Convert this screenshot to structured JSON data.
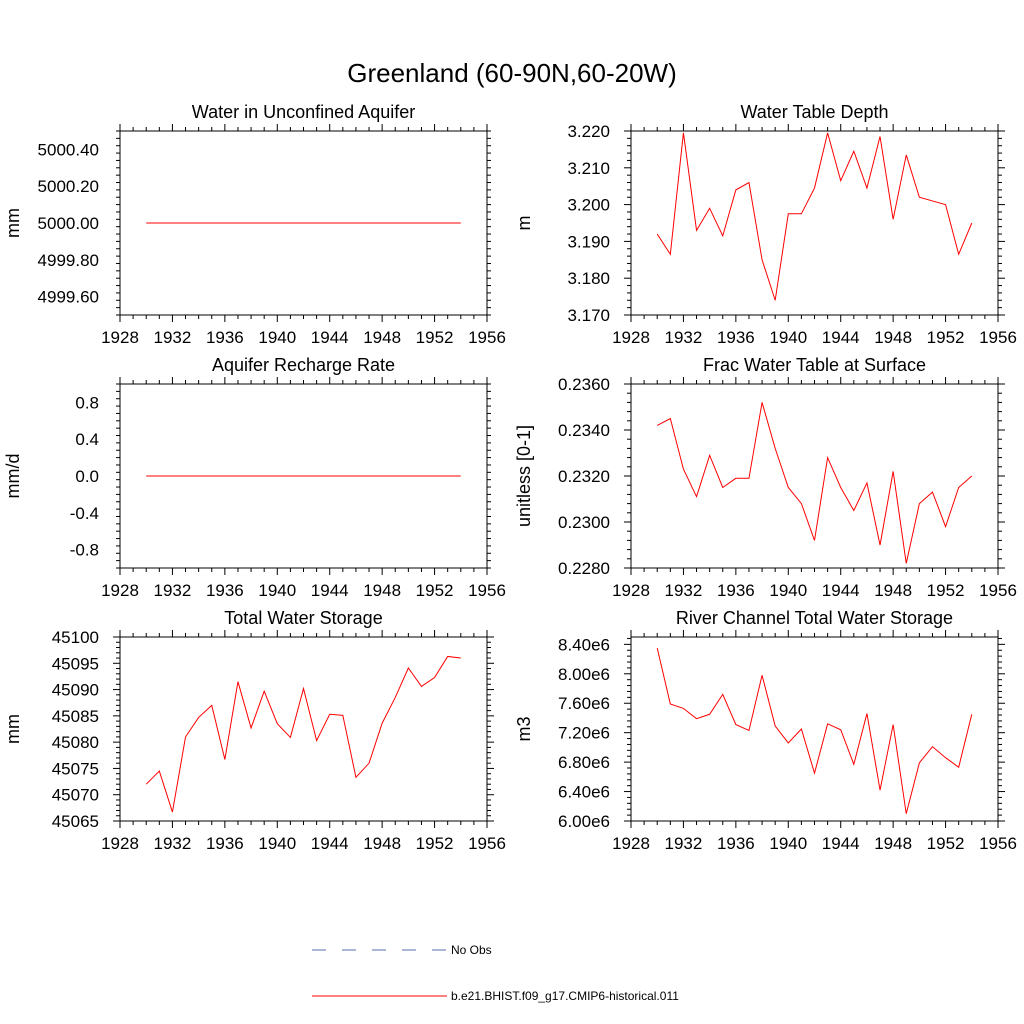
{
  "figure_title": "Greenland (60-90N,60-20W)",
  "colors": {
    "model": "#ff0000",
    "obs": "#5a6fb0",
    "axis": "#000000"
  },
  "legend": [
    {
      "label": "No Obs",
      "style": "dashed",
      "color": "#5a6fb0"
    },
    {
      "label": "b.e21.BHIST.f09_g17.CMIP6-historical.011",
      "style": "solid",
      "color": "#ff0000"
    }
  ],
  "chart_data": [
    {
      "type": "line",
      "title": "Water in Unconfined Aquifer",
      "ylabel": "mm",
      "xlim": [
        1928,
        1956
      ],
      "xticks": [
        "1928",
        "1932",
        "1936",
        "1940",
        "1944",
        "1948",
        "1952",
        "1956"
      ],
      "ylim": [
        4999.5,
        5000.5
      ],
      "yticks": [
        "4999.60",
        "4999.80",
        "5000.00",
        "5000.20",
        "5000.40"
      ],
      "x": [
        1930,
        1931,
        1932,
        1933,
        1934,
        1935,
        1936,
        1937,
        1938,
        1939,
        1940,
        1941,
        1942,
        1943,
        1944,
        1945,
        1946,
        1947,
        1948,
        1949,
        1950,
        1951,
        1952,
        1953,
        1954
      ],
      "series": [
        {
          "values": [
            5000,
            5000,
            5000,
            5000,
            5000,
            5000,
            5000,
            5000,
            5000,
            5000,
            5000,
            5000,
            5000,
            5000,
            5000,
            5000,
            5000,
            5000,
            5000,
            5000,
            5000,
            5000,
            5000,
            5000,
            5000
          ]
        }
      ]
    },
    {
      "type": "line",
      "title": "Water Table Depth",
      "ylabel": "m",
      "xlim": [
        1928,
        1956
      ],
      "xticks": [
        "1928",
        "1932",
        "1936",
        "1940",
        "1944",
        "1948",
        "1952",
        "1956"
      ],
      "ylim": [
        3.17,
        3.22
      ],
      "yticks": [
        "3.170",
        "3.180",
        "3.190",
        "3.200",
        "3.210",
        "3.220"
      ],
      "x": [
        1930,
        1931,
        1932,
        1933,
        1934,
        1935,
        1936,
        1937,
        1938,
        1939,
        1940,
        1941,
        1942,
        1943,
        1944,
        1945,
        1946,
        1947,
        1948,
        1949,
        1950,
        1951,
        1952,
        1953,
        1954
      ],
      "series": [
        {
          "values": [
            3.192,
            3.1865,
            3.2195,
            3.193,
            3.199,
            3.1915,
            3.204,
            3.206,
            3.185,
            3.174,
            3.1975,
            3.1975,
            3.2045,
            3.2195,
            3.2065,
            3.2145,
            3.2045,
            3.2185,
            3.196,
            3.2135,
            3.202,
            3.201,
            3.2,
            3.1865,
            3.195
          ]
        }
      ]
    },
    {
      "type": "line",
      "title": "Aquifer Recharge Rate",
      "ylabel": "mm/d",
      "xlim": [
        1928,
        1956
      ],
      "xticks": [
        "1928",
        "1932",
        "1936",
        "1940",
        "1944",
        "1948",
        "1952",
        "1956"
      ],
      "ylim": [
        -1.0,
        1.0
      ],
      "yticks": [
        "-0.8",
        "-0.4",
        "0.0",
        "0.4",
        "0.8"
      ],
      "x": [
        1930,
        1931,
        1932,
        1933,
        1934,
        1935,
        1936,
        1937,
        1938,
        1939,
        1940,
        1941,
        1942,
        1943,
        1944,
        1945,
        1946,
        1947,
        1948,
        1949,
        1950,
        1951,
        1952,
        1953,
        1954
      ],
      "series": [
        {
          "values": [
            0,
            0,
            0,
            0,
            0,
            0,
            0,
            0,
            0,
            0,
            0,
            0,
            0,
            0,
            0,
            0,
            0,
            0,
            0,
            0,
            0,
            0,
            0,
            0,
            0
          ]
        }
      ]
    },
    {
      "type": "line",
      "title": "Frac Water Table at Surface",
      "ylabel": "unitless [0-1]",
      "xlim": [
        1928,
        1956
      ],
      "xticks": [
        "1928",
        "1932",
        "1936",
        "1940",
        "1944",
        "1948",
        "1952",
        "1956"
      ],
      "ylim": [
        0.228,
        0.236
      ],
      "yticks": [
        "0.2280",
        "0.2300",
        "0.2320",
        "0.2340",
        "0.2360"
      ],
      "x": [
        1930,
        1931,
        1932,
        1933,
        1934,
        1935,
        1936,
        1937,
        1938,
        1939,
        1940,
        1941,
        1942,
        1943,
        1944,
        1945,
        1946,
        1947,
        1948,
        1949,
        1950,
        1951,
        1952,
        1953,
        1954
      ],
      "series": [
        {
          "values": [
            0.2342,
            0.2345,
            0.2323,
            0.2311,
            0.2329,
            0.2315,
            0.2319,
            0.2319,
            0.2352,
            0.2332,
            0.2315,
            0.2308,
            0.2292,
            0.2328,
            0.2315,
            0.2305,
            0.2317,
            0.229,
            0.2322,
            0.2282,
            0.2308,
            0.2313,
            0.2298,
            0.2315,
            0.232
          ]
        }
      ]
    },
    {
      "type": "line",
      "title": "Total Water Storage",
      "ylabel": "mm",
      "xlim": [
        1928,
        1956
      ],
      "xticks": [
        "1928",
        "1932",
        "1936",
        "1940",
        "1944",
        "1948",
        "1952",
        "1956"
      ],
      "ylim": [
        45065,
        45100
      ],
      "yticks": [
        "45065",
        "45070",
        "45075",
        "45080",
        "45085",
        "45090",
        "45095",
        "45100"
      ],
      "x": [
        1930,
        1931,
        1932,
        1933,
        1934,
        1935,
        1936,
        1937,
        1938,
        1939,
        1940,
        1941,
        1942,
        1943,
        1944,
        1945,
        1946,
        1947,
        1948,
        1949,
        1950,
        1951,
        1952,
        1953,
        1954
      ],
      "series": [
        {
          "values": [
            45072,
            45074.5,
            45066.7,
            45081,
            45084.7,
            45087,
            45076.7,
            45091.5,
            45082.7,
            45089.7,
            45083.5,
            45080.9,
            45090.2,
            45080.3,
            45085.3,
            45085.1,
            45073.3,
            45076,
            45083.6,
            45088.5,
            45094.1,
            45090.6,
            45092.3,
            45096.3,
            45096
          ]
        }
      ]
    },
    {
      "type": "line",
      "title": "River Channel Total Water Storage",
      "ylabel": "m3",
      "xlim": [
        1928,
        1956
      ],
      "xticks": [
        "1928",
        "1932",
        "1936",
        "1940",
        "1944",
        "1948",
        "1952",
        "1956"
      ],
      "ylim": [
        6000000,
        8500000
      ],
      "yticks": [
        "6.00e6",
        "6.40e6",
        "6.80e6",
        "7.20e6",
        "7.60e6",
        "8.00e6",
        "8.40e6"
      ],
      "x": [
        1930,
        1931,
        1932,
        1933,
        1934,
        1935,
        1936,
        1937,
        1938,
        1939,
        1940,
        1941,
        1942,
        1943,
        1944,
        1945,
        1946,
        1947,
        1948,
        1949,
        1950,
        1951,
        1952,
        1953,
        1954
      ],
      "series": [
        {
          "values": [
            8350000,
            7590000,
            7530000,
            7390000,
            7450000,
            7720000,
            7310000,
            7230000,
            7980000,
            7290000,
            7060000,
            7250000,
            6650000,
            7320000,
            7240000,
            6770000,
            7460000,
            6420000,
            7310000,
            6100000,
            6790000,
            7010000,
            6860000,
            6730000,
            7450000
          ]
        }
      ]
    }
  ]
}
